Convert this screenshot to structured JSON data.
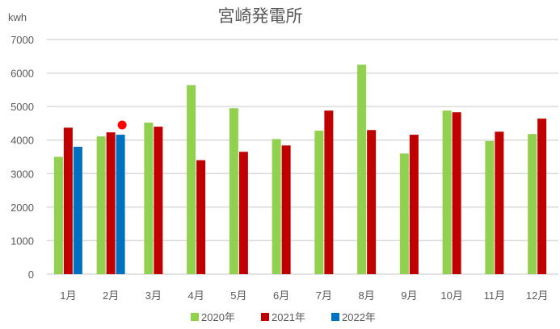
{
  "chart_data": {
    "type": "bar",
    "title": "宮崎発電所",
    "ylabel": "kwh",
    "xlabel": "",
    "ylim": [
      0,
      7000
    ],
    "yticks": [
      0,
      1000,
      2000,
      3000,
      4000,
      5000,
      6000,
      7000
    ],
    "grid": true,
    "legend_position": "bottom",
    "categories": [
      "1月",
      "2月",
      "3月",
      "4月",
      "5月",
      "6月",
      "7月",
      "8月",
      "9月",
      "10月",
      "11月",
      "12月"
    ],
    "series": [
      {
        "name": "2020年",
        "color": "#92D050",
        "values": [
          3500,
          4110,
          4520,
          5640,
          4950,
          4030,
          4280,
          6250,
          3600,
          4880,
          3970,
          4180
        ]
      },
      {
        "name": "2021年",
        "color": "#C00000",
        "values": [
          4370,
          4230,
          4400,
          3400,
          3650,
          3840,
          4880,
          4300,
          4160,
          4830,
          4250,
          4640
        ]
      },
      {
        "name": "2022年",
        "color": "#0070C0",
        "values": [
          3800,
          4160,
          null,
          null,
          null,
          null,
          null,
          null,
          null,
          null,
          null,
          null
        ]
      }
    ],
    "annotations": [
      {
        "type": "marker",
        "shape": "circle",
        "color": "#FF0000",
        "category": "2月",
        "value": 4450
      }
    ]
  }
}
